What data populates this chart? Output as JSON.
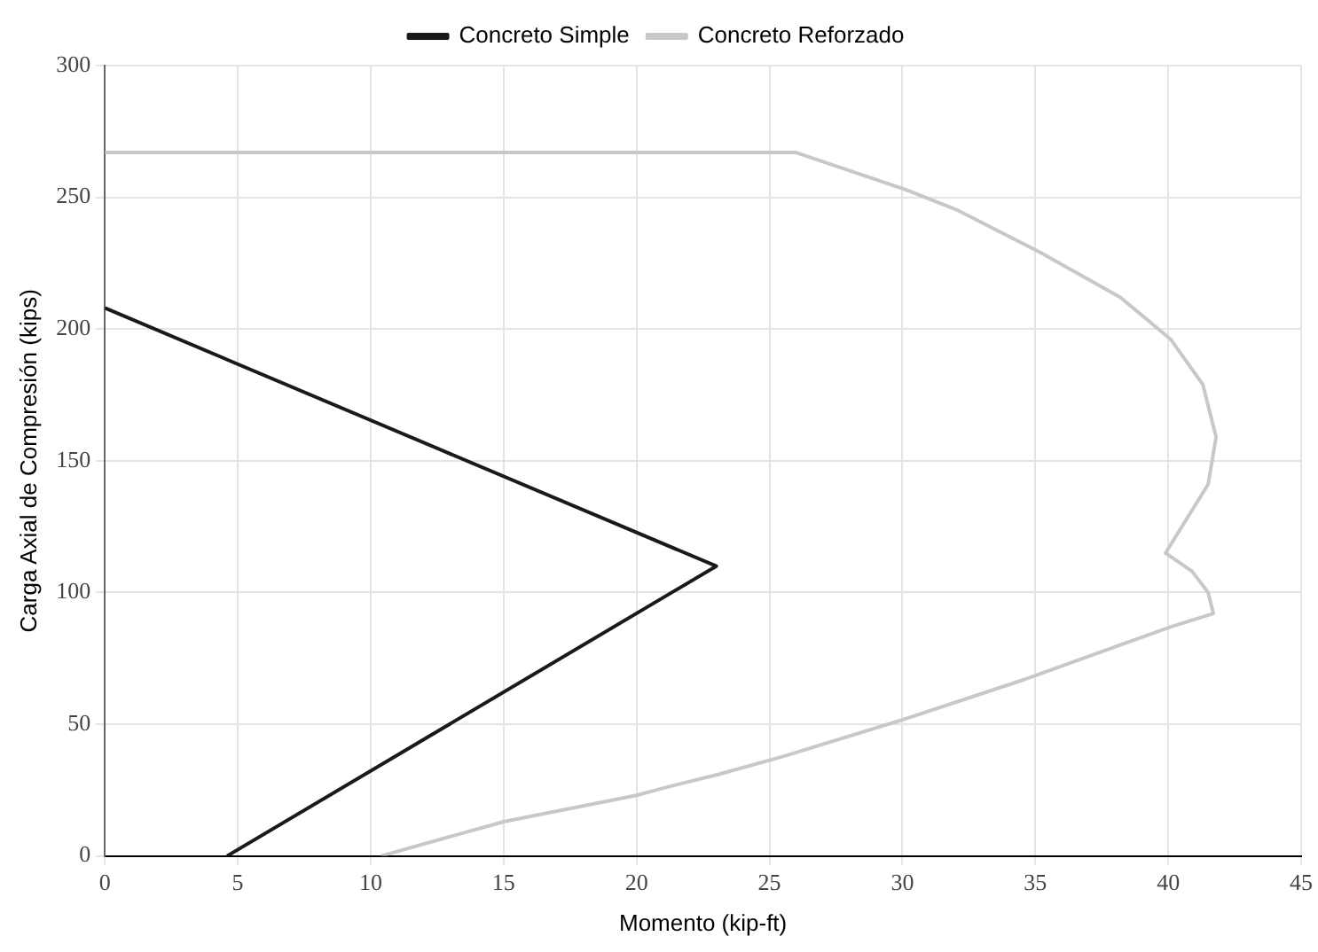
{
  "chart_data": {
    "type": "line",
    "xlabel": "Momento (kip-ft)",
    "ylabel": "Carga Axial de Compresión (kips)",
    "xlim": [
      0,
      45
    ],
    "xticks": [
      0,
      5,
      10,
      15,
      20,
      25,
      30,
      35,
      40,
      45
    ],
    "ylim": [
      0,
      300
    ],
    "yticks": [
      0,
      50,
      100,
      150,
      200,
      250,
      300
    ],
    "grid": true,
    "legend": "top",
    "marker": "none",
    "line_style": "solid",
    "series": [
      {
        "name": "Concreto Simple",
        "color": "#1a1a1a",
        "x": [
          0,
          23,
          4.6
        ],
        "values": [
          208,
          110,
          0
        ]
      },
      {
        "name": "Concreto Reforzado",
        "color": "#c8c8c8",
        "x": [
          0,
          26,
          30.1,
          32.1,
          35.2,
          38.2,
          40.1,
          41.3,
          41.8,
          41.5,
          39.9,
          40.9,
          41.5,
          41.7,
          40.1,
          34.6,
          30.1,
          25.6,
          23.1,
          21.1,
          20,
          15,
          10.4
        ],
        "values": [
          267,
          267,
          253,
          245,
          229,
          212,
          196,
          179,
          159,
          141,
          115,
          108,
          100,
          92,
          87,
          67,
          52,
          38,
          31,
          26,
          23,
          13,
          0
        ]
      }
    ]
  }
}
